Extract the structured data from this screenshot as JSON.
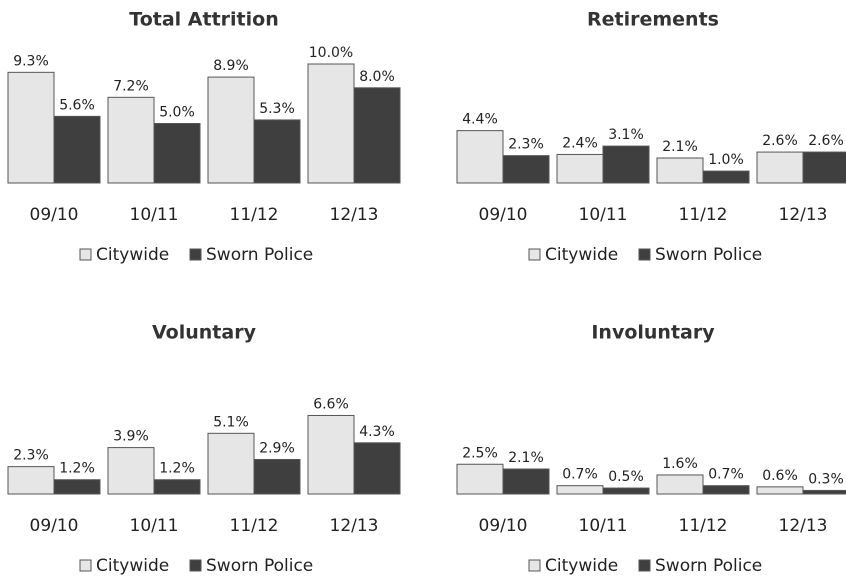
{
  "chart_data": [
    {
      "type": "bar",
      "title": "Total Attrition",
      "categories": [
        "09/10",
        "10/11",
        "11/12",
        "12/13"
      ],
      "series": [
        {
          "name": "Citywide",
          "color": "#e6e6e6",
          "values": [
            9.3,
            7.2,
            8.9,
            10.0
          ],
          "value_labels": [
            "9.3%",
            "7.2%",
            "8.9%",
            "10.0%"
          ]
        },
        {
          "name": "Sworn Police",
          "color": "#3f3f3f",
          "values": [
            5.6,
            5.0,
            5.3,
            8.0
          ],
          "value_labels": [
            "5.6%",
            "5.0%",
            "5.3%",
            "8.0%"
          ]
        }
      ]
    },
    {
      "type": "bar",
      "title": "Retirements",
      "categories": [
        "09/10",
        "10/11",
        "11/12",
        "12/13"
      ],
      "series": [
        {
          "name": "Citywide",
          "color": "#e6e6e6",
          "values": [
            4.4,
            2.4,
            2.1,
            2.6
          ],
          "value_labels": [
            "4.4%",
            "2.4%",
            "2.1%",
            "2.6%"
          ]
        },
        {
          "name": "Sworn Police",
          "color": "#3f3f3f",
          "values": [
            2.3,
            3.1,
            1.0,
            2.6
          ],
          "value_labels": [
            "2.3%",
            "3.1%",
            "1.0%",
            "2.6%"
          ]
        }
      ]
    },
    {
      "type": "bar",
      "title": "Voluntary",
      "categories": [
        "09/10",
        "10/11",
        "11/12",
        "12/13"
      ],
      "series": [
        {
          "name": "Citywide",
          "color": "#e6e6e6",
          "values": [
            2.3,
            3.9,
            5.1,
            6.6
          ],
          "value_labels": [
            "2.3%",
            "3.9%",
            "5.1%",
            "6.6%"
          ]
        },
        {
          "name": "Sworn Police",
          "color": "#3f3f3f",
          "values": [
            1.2,
            1.2,
            2.9,
            4.3
          ],
          "value_labels": [
            "1.2%",
            "1.2%",
            "2.9%",
            "4.3%"
          ]
        }
      ]
    },
    {
      "type": "bar",
      "title": "Involuntary",
      "categories": [
        "09/10",
        "10/11",
        "11/12",
        "12/13"
      ],
      "series": [
        {
          "name": "Citywide",
          "color": "#e6e6e6",
          "values": [
            2.5,
            0.7,
            1.6,
            0.6
          ],
          "value_labels": [
            "2.5%",
            "0.7%",
            "1.6%",
            "0.6%"
          ]
        },
        {
          "name": "Sworn Police",
          "color": "#3f3f3f",
          "values": [
            2.1,
            0.5,
            0.7,
            0.3
          ],
          "value_labels": [
            "2.1%",
            "0.5%",
            "0.7%",
            "0.3%"
          ]
        }
      ]
    }
  ]
}
